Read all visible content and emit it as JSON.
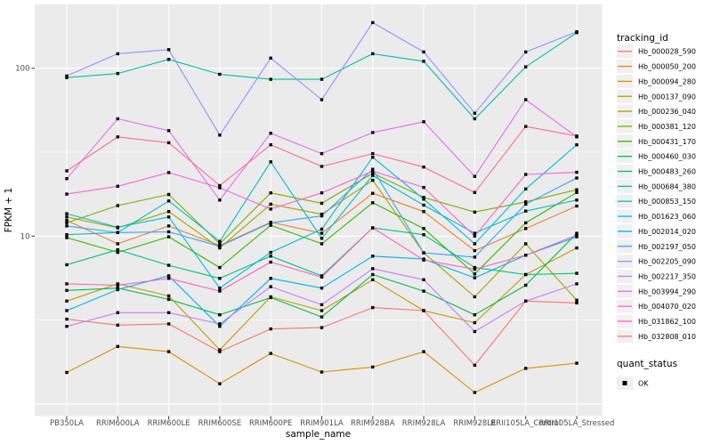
{
  "figure": {
    "background": "#FFFFFF",
    "panel_background": "#EBEBEB",
    "grid_color": "#FFFFFF",
    "tick_text_color": "#4D4D4D",
    "text_color": "#000000",
    "tick_mark_color": "#333333",
    "legend_key_background": "#F0F0F0",
    "point_color": "#000000"
  },
  "axes": {
    "x": {
      "label": "sample_name"
    },
    "y": {
      "label": "FPKM + 1",
      "scale": "log10",
      "tick_labels": [
        "10",
        "100"
      ]
    }
  },
  "legend": {
    "tracking_title": "tracking_id",
    "quant_title": "quant_status",
    "quant_items": [
      {
        "label": "OK",
        "marker": "black-square"
      }
    ]
  },
  "chart_data": {
    "type": "line",
    "title": "",
    "xlabel": "sample_name",
    "ylabel": "FPKM + 1",
    "yscale": "log10",
    "ybreaks": [
      1,
      10,
      100
    ],
    "ybreak_labels_shown": [
      "10",
      "100"
    ],
    "yminor": [
      3.1623,
      31.623
    ],
    "ylim_approx": [
      0.9,
      240
    ],
    "grid": true,
    "legend_position": "right",
    "point_marker": "black-square (quant_status OK)",
    "x": [
      "PB350LA",
      "RRIM600LA",
      "RRIM600LE",
      "RRIM600SE",
      "RRIM600PE",
      "RRIM901LA",
      "RRIM928BA",
      "RRIM928LA",
      "RRIM928LE",
      "RRII105LA_Control",
      "RRII105LA_Stressed"
    ],
    "series": [
      {
        "name": "Hb_000028_590",
        "color": "#F8766D",
        "values": [
          3.2,
          2.95,
          3.0,
          2.05,
          2.8,
          2.85,
          3.75,
          3.6,
          1.7,
          4.1,
          4.0
        ]
      },
      {
        "name": "Hb_000050_200",
        "color": "#EA8331",
        "values": [
          12.4,
          9.0,
          11.5,
          8.8,
          12.1,
          10.4,
          18.0,
          14.0,
          8.2,
          11.1,
          15.1
        ]
      },
      {
        "name": "Hb_000094_280",
        "color": "#D89000",
        "values": [
          1.54,
          2.2,
          2.05,
          1.32,
          2.0,
          1.55,
          1.66,
          2.05,
          1.17,
          1.63,
          1.75
        ]
      },
      {
        "name": "Hb_000137_090",
        "color": "#C09B00",
        "values": [
          4.1,
          5.2,
          4.4,
          2.1,
          4.35,
          3.6,
          5.5,
          3.6,
          3.05,
          5.9,
          8.5
        ]
      },
      {
        "name": "Hb_000236_040",
        "color": "#A3A500",
        "values": [
          13.0,
          11.2,
          14.0,
          8.5,
          15.5,
          13.5,
          21.5,
          7.95,
          4.35,
          9.0,
          4.15
        ]
      },
      {
        "name": "Hb_000381_120",
        "color": "#7CAE00",
        "values": [
          12.0,
          15.2,
          17.7,
          9.0,
          18.1,
          15.7,
          23.7,
          17.0,
          13.9,
          16.0,
          18.9
        ]
      },
      {
        "name": "Hb_000431_170",
        "color": "#39B600",
        "values": [
          9.8,
          8.0,
          9.9,
          6.5,
          11.6,
          9.0,
          15.8,
          11.1,
          5.95,
          12.0,
          18.2
        ]
      },
      {
        "name": "Hb_000460_030",
        "color": "#00BB4E",
        "values": [
          4.75,
          4.9,
          4.2,
          3.4,
          4.3,
          3.3,
          5.9,
          4.7,
          3.4,
          5.1,
          10.4
        ]
      },
      {
        "name": "Hb_000483_260",
        "color": "#00BF7D",
        "values": [
          6.75,
          8.3,
          6.7,
          5.6,
          7.6,
          5.8,
          11.2,
          10.2,
          6.5,
          5.9,
          6.0
        ]
      },
      {
        "name": "Hb_000684_380",
        "color": "#00C1A3",
        "values": [
          88,
          93,
          113,
          92,
          86,
          86,
          122,
          110,
          50,
          102,
          163
        ]
      },
      {
        "name": "Hb_000853_150",
        "color": "#00BFC4",
        "values": [
          10.2,
          10.5,
          16.2,
          9.3,
          27.7,
          9.7,
          23.0,
          15.3,
          10.4,
          14.1,
          16.4
        ]
      },
      {
        "name": "Hb_001623_060",
        "color": "#00BADE",
        "values": [
          13.6,
          11.3,
          13.0,
          4.9,
          8.0,
          11.0,
          29.5,
          16.6,
          9.0,
          19.1,
          35.0
        ]
      },
      {
        "name": "Hb_002014_020",
        "color": "#00B0F6",
        "values": [
          3.6,
          4.8,
          5.8,
          2.9,
          5.6,
          4.9,
          7.6,
          7.3,
          5.65,
          7.7,
          9.9
        ]
      },
      {
        "name": "Hb_002197_050",
        "color": "#35A2FF",
        "values": [
          11.5,
          10.5,
          10.6,
          8.7,
          12.0,
          13.2,
          25.0,
          7.95,
          7.5,
          15.5,
          22.2
        ]
      },
      {
        "name": "Hb_002205_090",
        "color": "#9590FF",
        "values": [
          90,
          122,
          129,
          40,
          115,
          65,
          187,
          125,
          54,
          125,
          165
        ]
      },
      {
        "name": "Hb_002217_350",
        "color": "#C77CFF",
        "values": [
          2.9,
          3.5,
          3.5,
          3.0,
          5.0,
          3.9,
          6.4,
          5.5,
          2.7,
          4.1,
          5.2
        ]
      },
      {
        "name": "Hb_003994_290",
        "color": "#E76BF3",
        "values": [
          22.0,
          50.0,
          42.5,
          16.4,
          41.0,
          31.0,
          41.4,
          48.0,
          22.7,
          65.0,
          39.0
        ]
      },
      {
        "name": "Hb_004070_020",
        "color": "#FA62DB",
        "values": [
          17.8,
          19.8,
          23.9,
          19.4,
          14.5,
          18.1,
          24.4,
          19.5,
          10.0,
          23.3,
          24.0
        ]
      },
      {
        "name": "Hb_031862_100",
        "color": "#FF62BC",
        "values": [
          5.2,
          5.1,
          5.6,
          4.7,
          7.0,
          5.7,
          11.2,
          7.2,
          6.35,
          7.7,
          10.15
        ]
      },
      {
        "name": "Hb_032808_010",
        "color": "#FF6A98",
        "values": [
          24.5,
          39.0,
          36.0,
          20.0,
          35.0,
          26.0,
          31.0,
          25.8,
          18.2,
          45.0,
          39.5
        ]
      }
    ]
  }
}
